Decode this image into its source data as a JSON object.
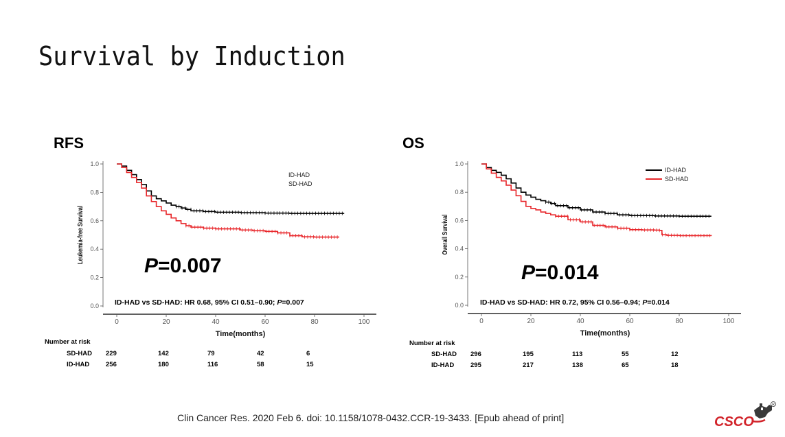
{
  "slide": {
    "title": "Survival by Induction",
    "citation": "Clin Cancer Res. 2020 Feb 6. doi: 10.1158/1078-0432.CCR-19-3433. [Epub ahead of print]",
    "logo_text": "CSCO"
  },
  "chart_data": [
    {
      "panel": "RFS",
      "type": "line",
      "ylabel": "Leukemia-free Survival",
      "xlabel": "Time(months)",
      "xlim": [
        0,
        100
      ],
      "ylim": [
        0,
        1.0
      ],
      "xticks": [
        "0",
        "20",
        "40",
        "60",
        "80",
        "100"
      ],
      "yticks": [
        "0.0",
        "0.2",
        "0.4",
        "0.6",
        "0.8",
        "1.0"
      ],
      "legend": [
        "ID-HAD",
        "SD-HAD"
      ],
      "p_value": "P=0.007",
      "p_italic": "P",
      "p_num": "=0.007",
      "stat_text": "ID-HAD vs SD-HAD: HR 0.68, 95% CI 0.51–0.90; P=0.007",
      "stat_prefix": "ID-HAD vs SD-HAD: HR 0.68, 95% CI 0.51–0.90; ",
      "stat_italic": "P",
      "stat_suffix": "=0.007",
      "series": [
        {
          "name": "ID-HAD",
          "color": "#000000",
          "x": [
            0,
            2,
            4,
            6,
            8,
            10,
            12,
            14,
            16,
            18,
            20,
            22,
            24,
            26,
            28,
            30,
            35,
            40,
            50,
            60,
            70,
            80,
            92
          ],
          "y": [
            1.0,
            0.985,
            0.955,
            0.925,
            0.89,
            0.855,
            0.81,
            0.775,
            0.755,
            0.74,
            0.725,
            0.71,
            0.7,
            0.69,
            0.68,
            0.67,
            0.665,
            0.66,
            0.657,
            0.654,
            0.652,
            0.652,
            0.652
          ]
        },
        {
          "name": "SD-HAD",
          "color": "#e8262a",
          "x": [
            0,
            2,
            4,
            6,
            8,
            10,
            12,
            14,
            16,
            18,
            20,
            22,
            24,
            26,
            28,
            30,
            35,
            40,
            50,
            55,
            60,
            65,
            70,
            75,
            80,
            90
          ],
          "y": [
            1.0,
            0.975,
            0.94,
            0.905,
            0.87,
            0.83,
            0.775,
            0.735,
            0.7,
            0.67,
            0.645,
            0.62,
            0.6,
            0.58,
            0.565,
            0.555,
            0.548,
            0.543,
            0.535,
            0.53,
            0.525,
            0.515,
            0.495,
            0.487,
            0.485,
            0.485
          ]
        }
      ],
      "risk_table": {
        "header": "Number at risk",
        "rows": [
          {
            "label": "SD-HAD",
            "values": [
              "229",
              "142",
              "79",
              "42",
              "6"
            ]
          },
          {
            "label": "ID-HAD",
            "values": [
              "256",
              "180",
              "116",
              "58",
              "15"
            ]
          }
        ]
      }
    },
    {
      "panel": "OS",
      "type": "line",
      "ylabel": "Overall Survival",
      "xlabel": "Time(months)",
      "xlim": [
        0,
        100
      ],
      "ylim": [
        0,
        1.0
      ],
      "xticks": [
        "0",
        "20",
        "40",
        "60",
        "80",
        "100"
      ],
      "yticks": [
        "0.0",
        "0.2",
        "0.4",
        "0.6",
        "0.8",
        "1.0"
      ],
      "legend": [
        "ID-HAD",
        "SD-HAD"
      ],
      "p_value": "P=0.014",
      "p_italic": "P",
      "p_num": "=0.014",
      "stat_text": "ID-HAD vs SD-HAD: HR 0.72, 95% CI 0.56–0.94; P=0.014",
      "stat_prefix": "ID-HAD vs SD-HAD: HR 0.72, 95% CI 0.56–0.94; ",
      "stat_italic": "P",
      "stat_suffix": "=0.014",
      "series": [
        {
          "name": "ID-HAD",
          "color": "#000000",
          "x": [
            0,
            2,
            4,
            6,
            8,
            10,
            12,
            14,
            16,
            18,
            20,
            22,
            24,
            26,
            28,
            30,
            35,
            40,
            45,
            50,
            55,
            60,
            70,
            80,
            93
          ],
          "y": [
            1.0,
            0.975,
            0.955,
            0.94,
            0.92,
            0.895,
            0.865,
            0.83,
            0.8,
            0.78,
            0.765,
            0.75,
            0.74,
            0.73,
            0.72,
            0.705,
            0.69,
            0.675,
            0.66,
            0.65,
            0.64,
            0.635,
            0.632,
            0.63,
            0.63
          ]
        },
        {
          "name": "SD-HAD",
          "color": "#e8262a",
          "x": [
            0,
            2,
            4,
            6,
            8,
            10,
            12,
            14,
            16,
            18,
            20,
            22,
            24,
            26,
            28,
            30,
            35,
            40,
            45,
            50,
            55,
            60,
            65,
            70,
            72,
            73,
            75,
            80,
            93
          ],
          "y": [
            1.0,
            0.965,
            0.935,
            0.905,
            0.88,
            0.85,
            0.815,
            0.775,
            0.735,
            0.7,
            0.685,
            0.675,
            0.66,
            0.65,
            0.64,
            0.63,
            0.605,
            0.59,
            0.565,
            0.555,
            0.545,
            0.535,
            0.533,
            0.532,
            0.53,
            0.5,
            0.495,
            0.493,
            0.492
          ]
        }
      ],
      "risk_table": {
        "header": "Number at risk",
        "rows": [
          {
            "label": "SD-HAD",
            "values": [
              "296",
              "195",
              "113",
              "55",
              "12"
            ]
          },
          {
            "label": "ID-HAD",
            "values": [
              "295",
              "217",
              "138",
              "65",
              "18"
            ]
          }
        ]
      }
    }
  ]
}
